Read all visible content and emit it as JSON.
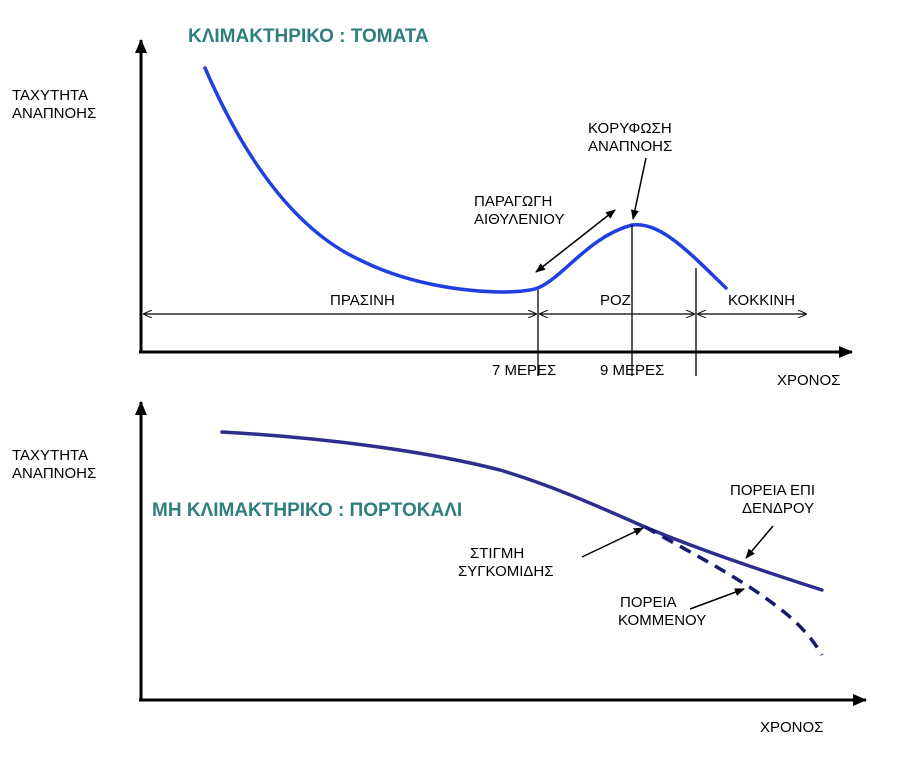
{
  "colors": {
    "title": "#2f7f7f",
    "curve_top": "#1f3fe0",
    "curve_bottom": "#2e2e8c",
    "curve_dashed": "#151a6e",
    "axis": "#000000"
  },
  "top_panel": {
    "title": "ΚΛΙΜΑΚΤΗΡΙΚΟ : ΤΟΜΑΤΑ",
    "y_label": [
      "ΤΑΧΥΤΗΤΑ",
      "ΑΝΑΠΝΟΗΣ"
    ],
    "x_label": "ΧΡΟΝΟΣ",
    "annotations": {
      "peak": [
        "ΚΟΡΥΦΩΣΗ",
        "ΑΝΑΠΝΟΗΣ"
      ],
      "ethylene": [
        "ΠΑΡΑΓΩΓΗ",
        "ΑΙΘΥΛΕΝΙΟΥ"
      ]
    },
    "stages": [
      "ΠΡΑΣΙΝΗ",
      "ΡΟΖ",
      "ΚΟΚΚΙΝΗ"
    ],
    "ticks": [
      "7 ΜΕΡΕΣ",
      "9 ΜΕΡΕΣ"
    ]
  },
  "bottom_panel": {
    "title": "ΜΗ ΚΛΙΜΑΚΤΗΡΙΚΟ : ΠΟΡΤΟΚΑΛΙ",
    "y_label": [
      "ΤΑΧΥΤΗΤΑ",
      "ΑΝΑΠΝΟΗΣ"
    ],
    "x_label": "ΧΡΟΝΟΣ",
    "annotations": {
      "on_tree": [
        "ΠΟΡΕΙΑ ΕΠΙ",
        "ΔΕΝΔΡΟΥ"
      ],
      "harvest": [
        "ΣΤΙΓΜΗ",
        "ΣΥΓΚΟΜΙΔΗΣ"
      ],
      "cut": [
        "ΠΟΡΕΙΑ",
        "ΚΟΜΜΕΝΟΥ"
      ]
    }
  }
}
